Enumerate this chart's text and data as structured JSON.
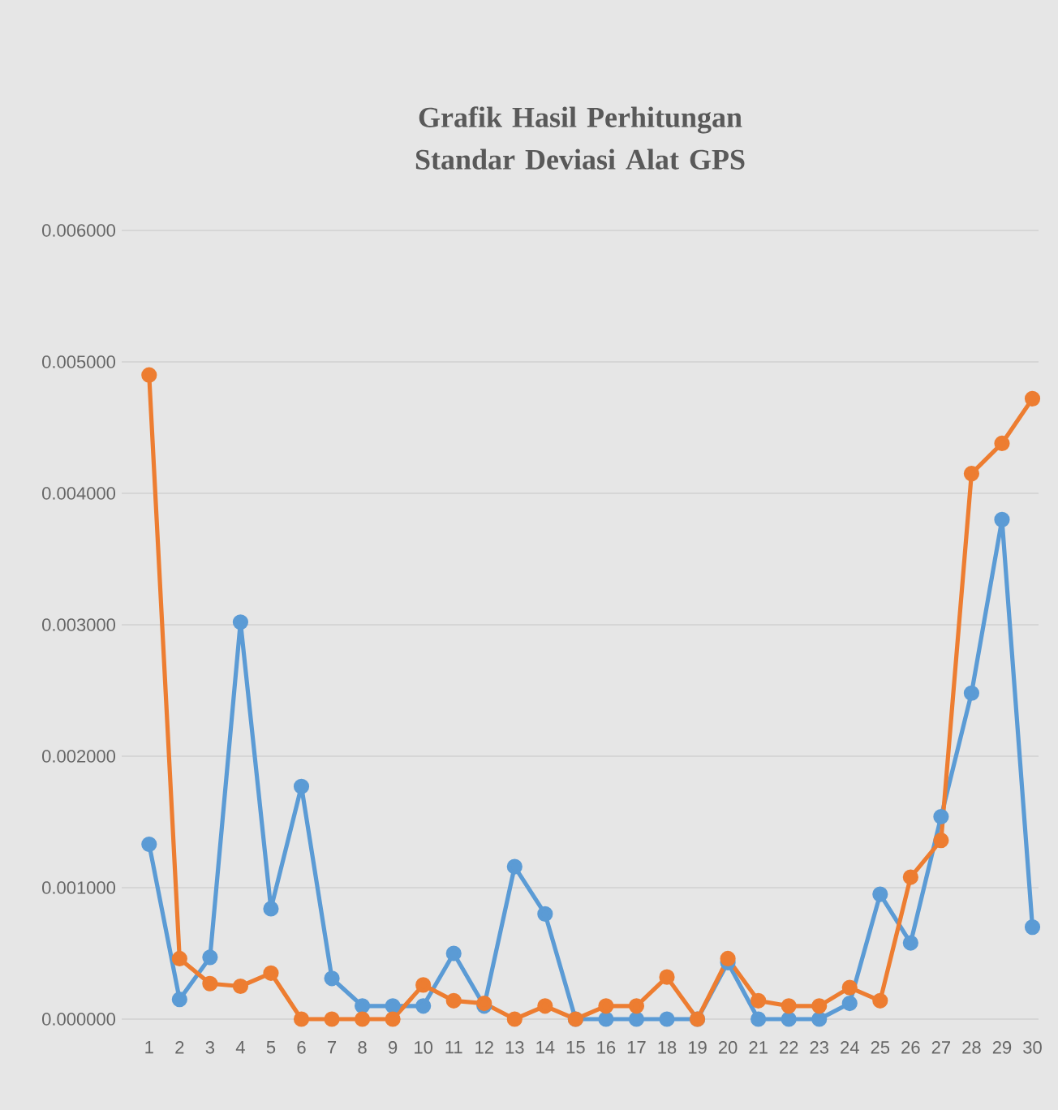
{
  "chart_data": {
    "type": "line",
    "title": "Grafik Hasil Perhitungan Standar Deviasi Alat GPS",
    "categories": [
      "1",
      "2",
      "3",
      "4",
      "5",
      "6",
      "7",
      "8",
      "9",
      "10",
      "11",
      "12",
      "13",
      "14",
      "15",
      "16",
      "17",
      "18",
      "19",
      "20",
      "21",
      "22",
      "23",
      "24",
      "25",
      "26",
      "27",
      "28",
      "29",
      "30"
    ],
    "series": [
      {
        "color": "#5b9bd5",
        "values": [
          0.00133,
          0.00015,
          0.00047,
          0.00302,
          0.00084,
          0.00177,
          0.00031,
          0.0001,
          0.0001,
          0.0001,
          0.0005,
          0.0001,
          0.00116,
          0.0008,
          0.0,
          0.0,
          0.0,
          0.0,
          0.0,
          0.00043,
          0.0,
          0.0,
          0.0,
          0.00012,
          0.00095,
          0.00058,
          0.00154,
          0.00248,
          0.0038,
          0.0007
        ]
      },
      {
        "color": "#ed7d31",
        "values": [
          0.0049,
          0.00046,
          0.00027,
          0.00025,
          0.00035,
          0.0,
          0.0,
          0.0,
          0.0,
          0.00026,
          0.00014,
          0.00012,
          0.0,
          0.0001,
          0.0,
          0.0001,
          0.0001,
          0.00032,
          0.0,
          0.00046,
          0.00014,
          0.0001,
          0.0001,
          0.00024,
          0.00014,
          0.00108,
          0.00136,
          0.00415,
          0.00438,
          0.00472
        ]
      }
    ],
    "ylim": [
      0,
      0.006
    ],
    "yticks": [
      {
        "value": 0,
        "label": "0.000000"
      },
      {
        "value": 0.001,
        "label": "0.001000"
      },
      {
        "value": 0.002,
        "label": "0.002000"
      },
      {
        "value": 0.003,
        "label": "0.003000"
      },
      {
        "value": 0.004,
        "label": "0.004000"
      },
      {
        "value": 0.005,
        "label": "0.005000"
      },
      {
        "value": 0.006,
        "label": "0.006000"
      }
    ],
    "grid": "y",
    "marker": "circle",
    "line_style": "solid"
  }
}
